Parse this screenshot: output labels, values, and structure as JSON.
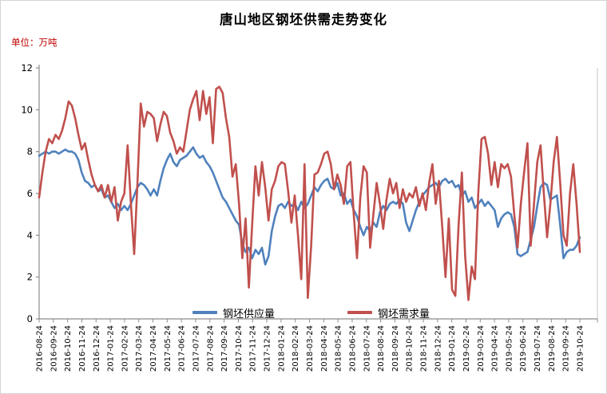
{
  "chart": {
    "title": "唐山地区钢坯供需走势变化",
    "unit_label": "单位：万吨"
  },
  "chart_data": {
    "type": "line",
    "title": "唐山地区钢坯供需走势变化",
    "ylabel": "单位：万吨",
    "ylim": [
      0,
      12
    ],
    "yticks": [
      0,
      2,
      4,
      6,
      8,
      10,
      12
    ],
    "grid": false,
    "legend_position": "bottom-inside",
    "x_frequency": "weekly",
    "x_tick_labels": [
      "2016-08-24",
      "2016-09-24",
      "2016-10-24",
      "2016-11-24",
      "2016-12-24",
      "2017-01-24",
      "2017-02-24",
      "2017-03-24",
      "2017-04-24",
      "2017-05-24",
      "2017-06-24",
      "2017-07-24",
      "2017-08-24",
      "2017-09-24",
      "2017-10-24",
      "2017-11-24",
      "2017-12-24",
      "2018-01-24",
      "2018-02-24",
      "2018-03-24",
      "2018-04-24",
      "2018-05-24",
      "2018-06-24",
      "2018-07-24",
      "2018-08-24",
      "2018-09-24",
      "2018-10-24",
      "2018-11-24",
      "2018-12-24",
      "2019-01-24",
      "2019-02-24",
      "2019-03-24",
      "2019-04-24",
      "2019-05-24",
      "2019-06-24",
      "2019-07-24",
      "2019-08-24",
      "2019-09-24",
      "2019-10-24"
    ],
    "series": [
      {
        "name": "钢坯供应量",
        "color": "#4F81BD",
        "values": [
          7.8,
          7.9,
          8.0,
          7.9,
          8.0,
          8.0,
          7.9,
          8.0,
          8.1,
          8.0,
          8.0,
          7.9,
          7.6,
          7.0,
          6.6,
          6.5,
          6.3,
          6.4,
          6.1,
          6.2,
          5.8,
          5.9,
          5.6,
          5.3,
          5.5,
          5.2,
          5.4,
          5.2,
          5.5,
          5.9,
          6.3,
          6.5,
          6.4,
          6.2,
          5.9,
          6.2,
          5.9,
          6.6,
          7.2,
          7.6,
          7.9,
          7.5,
          7.3,
          7.6,
          7.7,
          7.8,
          8.0,
          8.2,
          7.9,
          7.7,
          7.8,
          7.5,
          7.3,
          7.0,
          6.6,
          6.2,
          5.8,
          5.6,
          5.3,
          5.0,
          4.7,
          4.5,
          3.6,
          3.2,
          3.4,
          2.9,
          3.3,
          3.1,
          3.4,
          2.6,
          3.0,
          4.2,
          4.9,
          5.4,
          5.5,
          5.3,
          5.6,
          5.4,
          5.5,
          5.2,
          5.6,
          5.3,
          5.5,
          5.9,
          6.3,
          6.1,
          6.4,
          6.6,
          6.7,
          6.3,
          6.2,
          6.5,
          5.9,
          6.0,
          5.5,
          5.7,
          5.2,
          4.9,
          4.4,
          4.0,
          4.4,
          4.2,
          4.6,
          4.4,
          5.1,
          5.4,
          5.2,
          5.5,
          5.6,
          5.5,
          5.7,
          5.5,
          4.6,
          4.2,
          4.7,
          5.2,
          5.6,
          5.9,
          6.1,
          6.3,
          6.4,
          6.5,
          6.3,
          6.6,
          6.7,
          6.5,
          6.6,
          6.3,
          6.4,
          5.9,
          6.1,
          5.6,
          5.8,
          5.3,
          5.5,
          5.7,
          5.4,
          5.6,
          5.4,
          5.2,
          4.4,
          4.8,
          5.0,
          5.1,
          5.0,
          4.4,
          3.1,
          3.0,
          3.1,
          3.2,
          3.8,
          4.4,
          5.4,
          6.3,
          6.5,
          6.4,
          5.7,
          5.8,
          5.9,
          4.5,
          2.9,
          3.2,
          3.3,
          3.3,
          3.5,
          3.9
        ]
      },
      {
        "name": "钢坯需求量",
        "color": "#C0504D",
        "values": [
          5.8,
          7.0,
          8.0,
          8.6,
          8.4,
          8.8,
          8.6,
          9.0,
          9.6,
          10.4,
          10.2,
          9.6,
          8.8,
          8.1,
          8.4,
          7.6,
          6.9,
          6.4,
          6.1,
          6.4,
          5.8,
          6.4,
          5.6,
          6.3,
          4.7,
          5.6,
          6.0,
          8.3,
          5.5,
          3.1,
          6.5,
          10.3,
          9.2,
          9.9,
          9.8,
          9.6,
          8.5,
          9.3,
          9.9,
          9.7,
          8.9,
          8.5,
          7.9,
          8.2,
          8.0,
          9.0,
          10.0,
          10.5,
          10.9,
          9.5,
          10.9,
          9.8,
          10.6,
          8.4,
          11.0,
          11.1,
          10.8,
          9.6,
          8.7,
          6.8,
          7.4,
          5.5,
          2.9,
          4.8,
          1.5,
          4.5,
          7.3,
          5.9,
          7.5,
          6.3,
          4.7,
          6.2,
          6.6,
          7.3,
          7.5,
          7.4,
          6.1,
          4.6,
          5.9,
          4.0,
          1.9,
          7.4,
          1.0,
          3.5,
          6.9,
          7.0,
          7.4,
          7.9,
          8.0,
          7.4,
          6.2,
          6.9,
          6.4,
          5.5,
          7.3,
          7.5,
          5.0,
          2.9,
          5.8,
          7.3,
          7.0,
          3.4,
          5.0,
          6.5,
          5.5,
          4.3,
          5.7,
          6.7,
          6.0,
          6.5,
          5.3,
          6.2,
          5.6,
          6.0,
          5.8,
          6.3,
          5.4,
          6.0,
          5.2,
          6.5,
          7.4,
          5.5,
          6.6,
          4.4,
          2.0,
          4.8,
          1.4,
          1.1,
          4.5,
          7.0,
          3.0,
          0.9,
          2.5,
          1.9,
          6.0,
          8.6,
          8.7,
          7.9,
          6.4,
          7.5,
          6.3,
          7.4,
          7.2,
          7.4,
          6.8,
          5.0,
          3.4,
          5.5,
          7.0,
          8.4,
          3.5,
          5.5,
          7.5,
          8.3,
          6.0,
          3.9,
          5.5,
          7.5,
          8.7,
          6.5,
          4.0,
          3.5,
          6.0,
          7.4,
          5.5,
          3.2
        ]
      }
    ]
  }
}
